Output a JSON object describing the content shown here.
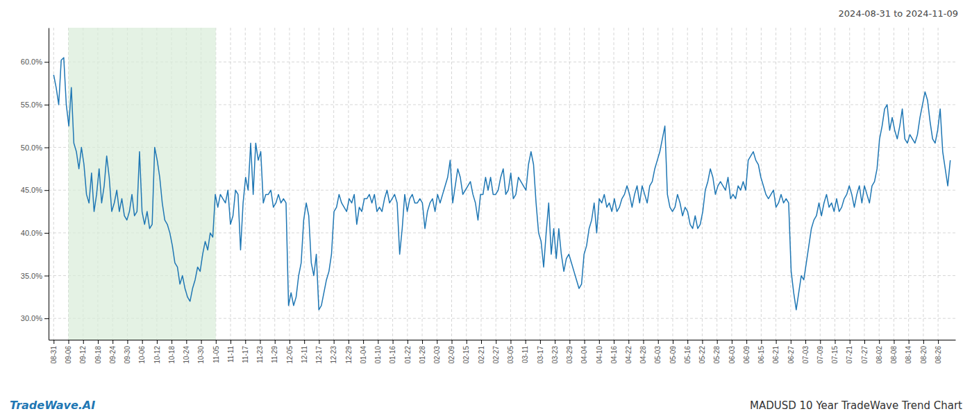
{
  "chart_data": {
    "type": "line",
    "title": "MADUSD 10 Year TradeWave Trend Chart",
    "subtitle": "2024-08-31 to 2024-11-09",
    "annotations": [
      "TradeWave.AI"
    ],
    "color": "#1f77b4",
    "grid": true,
    "shade": {
      "from": "09-06",
      "to": "11-05",
      "color": "#d8edd8"
    },
    "ylim": [
      27.5,
      64.0
    ],
    "yticks": [
      {
        "value": 30.0,
        "label": "30.0%"
      },
      {
        "value": 35.0,
        "label": "35.0%"
      },
      {
        "value": 40.0,
        "label": "40.0%"
      },
      {
        "value": 45.0,
        "label": "45.0%"
      },
      {
        "value": 50.0,
        "label": "50.0%"
      },
      {
        "value": 55.0,
        "label": "55.0%"
      },
      {
        "value": 60.0,
        "label": "60.0%"
      }
    ],
    "xlim": [
      -2,
      357
    ],
    "xticks": [
      {
        "value": 0,
        "label": "08-31"
      },
      {
        "value": 5.836066,
        "label": "09-06"
      },
      {
        "value": 11.672131,
        "label": "09-12"
      },
      {
        "value": 17.508197,
        "label": "09-18"
      },
      {
        "value": 23.344262,
        "label": "09-24"
      },
      {
        "value": 29.180328,
        "label": "09-30"
      },
      {
        "value": 35.016393,
        "label": "10-06"
      },
      {
        "value": 40.852459,
        "label": "10-12"
      },
      {
        "value": 46.688525,
        "label": "10-18"
      },
      {
        "value": 52.52459,
        "label": "10-24"
      },
      {
        "value": 58.360656,
        "label": "10-30"
      },
      {
        "value": 64.196721,
        "label": "11-05"
      },
      {
        "value": 70.032787,
        "label": "11-11"
      },
      {
        "value": 75.868852,
        "label": "11-17"
      },
      {
        "value": 81.704918,
        "label": "11-23"
      },
      {
        "value": 87.540984,
        "label": "11-29"
      },
      {
        "value": 93.377049,
        "label": "12-05"
      },
      {
        "value": 99.213115,
        "label": "12-11"
      },
      {
        "value": 105.04918,
        "label": "12-17"
      },
      {
        "value": 110.885246,
        "label": "12-23"
      },
      {
        "value": 116.721311,
        "label": "12-29"
      },
      {
        "value": 122.557377,
        "label": "01-04"
      },
      {
        "value": 128.393443,
        "label": "01-10"
      },
      {
        "value": 134.229508,
        "label": "01-16"
      },
      {
        "value": 140.065574,
        "label": "01-22"
      },
      {
        "value": 145.901639,
        "label": "01-28"
      },
      {
        "value": 151.737705,
        "label": "02-03"
      },
      {
        "value": 157.57377,
        "label": "02-09"
      },
      {
        "value": 163.409836,
        "label": "02-15"
      },
      {
        "value": 169.245902,
        "label": "02-21"
      },
      {
        "value": 175.081967,
        "label": "02-27"
      },
      {
        "value": 180.918033,
        "label": "03-05"
      },
      {
        "value": 186.754098,
        "label": "03-11"
      },
      {
        "value": 192.590164,
        "label": "03-17"
      },
      {
        "value": 198.42623,
        "label": "03-23"
      },
      {
        "value": 204.262295,
        "label": "03-29"
      },
      {
        "value": 210.098361,
        "label": "04-04"
      },
      {
        "value": 215.934426,
        "label": "04-10"
      },
      {
        "value": 221.770492,
        "label": "04-16"
      },
      {
        "value": 227.606557,
        "label": "04-22"
      },
      {
        "value": 233.442623,
        "label": "04-28"
      },
      {
        "value": 239.278689,
        "label": "05-03"
      },
      {
        "value": 245.114754,
        "label": "05-09"
      },
      {
        "value": 250.95082,
        "label": "05-16"
      },
      {
        "value": 256.786885,
        "label": "05-22"
      },
      {
        "value": 262.622951,
        "label": "05-28"
      },
      {
        "value": 268.459016,
        "label": "06-03"
      },
      {
        "value": 274.295082,
        "label": "06-09"
      },
      {
        "value": 280.131148,
        "label": "06-15"
      },
      {
        "value": 285.967213,
        "label": "06-21"
      },
      {
        "value": 291.803279,
        "label": "06-27"
      },
      {
        "value": 297.639344,
        "label": "07-03"
      },
      {
        "value": 303.47541,
        "label": "07-09"
      },
      {
        "value": 309.311475,
        "label": "07-15"
      },
      {
        "value": 315.147541,
        "label": "07-21"
      },
      {
        "value": 320.983607,
        "label": "07-27"
      },
      {
        "value": 326.819672,
        "label": "08-02"
      },
      {
        "value": 332.655738,
        "label": "08-08"
      },
      {
        "value": 338.491803,
        "label": "08-14"
      },
      {
        "value": 344.327869,
        "label": "08-20"
      },
      {
        "value": 350.163934,
        "label": "08-26"
      }
    ],
    "values": [
      58.5,
      57.0,
      55.0,
      60.2,
      60.5,
      55.0,
      52.5,
      57.0,
      50.5,
      49.5,
      47.5,
      50.0,
      48.0,
      44.5,
      43.5,
      47.0,
      42.5,
      44.5,
      47.5,
      43.5,
      45.5,
      49.0,
      46.5,
      42.5,
      43.5,
      45.0,
      42.5,
      44.0,
      42.0,
      41.5,
      42.5,
      44.5,
      42.0,
      42.5,
      49.5,
      42.5,
      41.0,
      42.5,
      40.5,
      41.0,
      50.0,
      48.5,
      46.5,
      43.5,
      41.5,
      41.0,
      40.0,
      38.5,
      36.5,
      36.0,
      34.0,
      35.0,
      33.5,
      32.5,
      32.0,
      33.5,
      34.5,
      36.0,
      35.5,
      37.5,
      39.0,
      38.0,
      40.0,
      39.5,
      44.5,
      43.0,
      44.5,
      44.0,
      43.5,
      45.0,
      41.0,
      42.0,
      45.0,
      44.5,
      38.0,
      43.5,
      46.5,
      45.0,
      50.5,
      44.5,
      50.5,
      48.5,
      49.5,
      43.5,
      44.5,
      44.5,
      45.0,
      43.0,
      43.5,
      44.5,
      43.5,
      44.0,
      43.5,
      31.5,
      33.0,
      31.5,
      32.5,
      35.0,
      36.5,
      41.5,
      43.5,
      42.0,
      36.5,
      35.0,
      37.5,
      31.0,
      31.5,
      33.0,
      34.5,
      35.5,
      37.5,
      42.5,
      43.0,
      44.5,
      43.5,
      43.0,
      42.5,
      44.0,
      43.5,
      44.5,
      41.0,
      43.0,
      42.5,
      44.0,
      44.0,
      44.5,
      43.5,
      44.5,
      42.5,
      43.0,
      42.5,
      44.0,
      45.0,
      43.5,
      44.0,
      44.5,
      43.5,
      37.5,
      40.5,
      44.5,
      42.5,
      44.0,
      44.5,
      43.5,
      43.5,
      44.0,
      43.5,
      40.5,
      42.5,
      43.5,
      44.0,
      42.5,
      44.5,
      43.5,
      44.5,
      45.5,
      46.5,
      48.5,
      43.5,
      45.5,
      47.5,
      46.5,
      44.5,
      45.0,
      45.5,
      46.0,
      44.5,
      43.5,
      41.5,
      44.5,
      44.5,
      46.5,
      45.0,
      46.5,
      44.5,
      44.5,
      45.0,
      46.5,
      47.5,
      44.5,
      45.0,
      47.0,
      44.0,
      44.5,
      46.5,
      46.0,
      45.5,
      45.0,
      48.0,
      49.5,
      48.0,
      43.5,
      40.0,
      39.0,
      36.0,
      40.0,
      43.5,
      37.5,
      40.5,
      37.0,
      40.5,
      37.5,
      35.5,
      37.0,
      37.5,
      36.5,
      35.5,
      34.5,
      33.5,
      34.0,
      37.5,
      38.5,
      40.5,
      41.5,
      43.5,
      40.0,
      44.0,
      43.5,
      44.5,
      43.0,
      43.5,
      42.5,
      44.0,
      42.5,
      43.0,
      44.0,
      44.5,
      45.5,
      44.5,
      43.0,
      44.5,
      45.5,
      43.5,
      45.5,
      44.5,
      43.5,
      45.5,
      46.0,
      47.5,
      48.5,
      49.5,
      51.0,
      52.5,
      44.5,
      43.0,
      42.5,
      43.0,
      44.5,
      43.5,
      42.0,
      43.0,
      42.5,
      41.0,
      40.5,
      42.0,
      40.5,
      41.0,
      42.5,
      45.0,
      46.0,
      47.5,
      46.5,
      44.5,
      45.5,
      46.0,
      45.5,
      45.0,
      46.5,
      44.0,
      44.5,
      44.0,
      45.5,
      45.0,
      46.0,
      45.0,
      48.5,
      49.0,
      49.5,
      48.5,
      48.0,
      46.5,
      45.5,
      44.5,
      44.0,
      44.5,
      45.0,
      43.0,
      43.5,
      44.5,
      43.5,
      44.0,
      43.5,
      35.5,
      33.0,
      31.0,
      33.0,
      35.0,
      34.5,
      36.5,
      38.5,
      40.5,
      41.5,
      42.0,
      43.5,
      42.0,
      43.5,
      44.5,
      43.0,
      43.5,
      42.5,
      44.0,
      42.5,
      43.0,
      44.0,
      44.5,
      45.5,
      44.5,
      43.0,
      44.5,
      45.5,
      43.5,
      45.5,
      44.5,
      43.5,
      45.5,
      46.0,
      47.5,
      51.0,
      52.5,
      54.5,
      55.0,
      52.0,
      53.5,
      52.0,
      51.0,
      52.5,
      54.5,
      51.0,
      50.5,
      51.5,
      51.0,
      50.5,
      51.5,
      53.5,
      55.0,
      56.5,
      55.5,
      53.0,
      51.0,
      50.5,
      52.0,
      54.5,
      49.5,
      47.5,
      45.5,
      48.5
    ]
  }
}
